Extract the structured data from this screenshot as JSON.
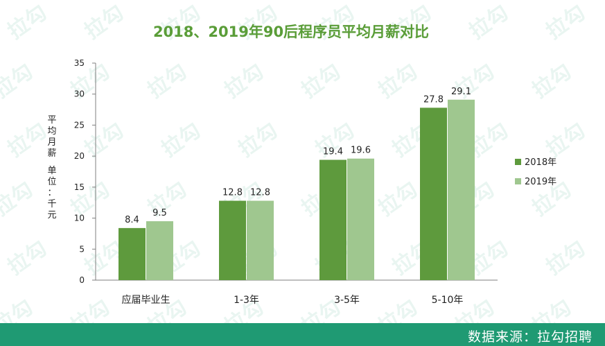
{
  "chart_data": {
    "type": "bar",
    "title": "2018、2019年90后程序员平均月薪对比",
    "ylabel": "平均月薪 单位：千元",
    "ylim": [
      0,
      35
    ],
    "yticks": [
      0,
      5,
      10,
      15,
      20,
      25,
      30,
      35
    ],
    "grid": false,
    "legend_position": "right",
    "categories": [
      "应届毕业生",
      "1-3年",
      "3-5年",
      "5-10年"
    ],
    "series": [
      {
        "name": "2018年",
        "color": "#5e9a3d",
        "values": [
          8.4,
          12.8,
          19.4,
          27.8
        ]
      },
      {
        "name": "2019年",
        "color": "#9fc78f",
        "values": [
          9.5,
          12.8,
          19.6,
          29.1
        ]
      }
    ]
  },
  "watermark": "拉勾",
  "footer": {
    "source": "数据来源：拉勾招聘"
  }
}
